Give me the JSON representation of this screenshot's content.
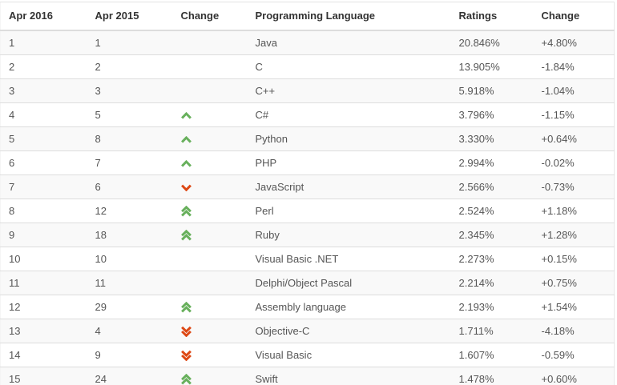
{
  "chart_data": {
    "type": "table",
    "columns": [
      "Apr 2016",
      "Apr 2015",
      "Change",
      "Programming Language",
      "Ratings",
      "Change"
    ],
    "rows": [
      {
        "apr2016": "1",
        "apr2015": "1",
        "change_direction": "none",
        "language": "Java",
        "ratings": "20.846%",
        "change": "+4.80%"
      },
      {
        "apr2016": "2",
        "apr2015": "2",
        "change_direction": "none",
        "language": "C",
        "ratings": "13.905%",
        "change": "-1.84%"
      },
      {
        "apr2016": "3",
        "apr2015": "3",
        "change_direction": "none",
        "language": "C++",
        "ratings": "5.918%",
        "change": "-1.04%"
      },
      {
        "apr2016": "4",
        "apr2015": "5",
        "change_direction": "up",
        "language": "C#",
        "ratings": "3.796%",
        "change": "-1.15%"
      },
      {
        "apr2016": "5",
        "apr2015": "8",
        "change_direction": "up",
        "language": "Python",
        "ratings": "3.330%",
        "change": "+0.64%"
      },
      {
        "apr2016": "6",
        "apr2015": "7",
        "change_direction": "up",
        "language": "PHP",
        "ratings": "2.994%",
        "change": "-0.02%"
      },
      {
        "apr2016": "7",
        "apr2015": "6",
        "change_direction": "down",
        "language": "JavaScript",
        "ratings": "2.566%",
        "change": "-0.73%"
      },
      {
        "apr2016": "8",
        "apr2015": "12",
        "change_direction": "double-up",
        "language": "Perl",
        "ratings": "2.524%",
        "change": "+1.18%"
      },
      {
        "apr2016": "9",
        "apr2015": "18",
        "change_direction": "double-up",
        "language": "Ruby",
        "ratings": "2.345%",
        "change": "+1.28%"
      },
      {
        "apr2016": "10",
        "apr2015": "10",
        "change_direction": "none",
        "language": "Visual Basic .NET",
        "ratings": "2.273%",
        "change": "+0.15%"
      },
      {
        "apr2016": "11",
        "apr2015": "11",
        "change_direction": "none",
        "language": "Delphi/Object Pascal",
        "ratings": "2.214%",
        "change": "+0.75%"
      },
      {
        "apr2016": "12",
        "apr2015": "29",
        "change_direction": "double-up",
        "language": "Assembly language",
        "ratings": "2.193%",
        "change": "+1.54%"
      },
      {
        "apr2016": "13",
        "apr2015": "4",
        "change_direction": "double-down",
        "language": "Objective-C",
        "ratings": "1.711%",
        "change": "-4.18%"
      },
      {
        "apr2016": "14",
        "apr2015": "9",
        "change_direction": "double-down",
        "language": "Visual Basic",
        "ratings": "1.607%",
        "change": "-0.59%"
      },
      {
        "apr2016": "15",
        "apr2015": "24",
        "change_direction": "double-up",
        "language": "Swift",
        "ratings": "1.478%",
        "change": "+0.60%"
      }
    ]
  },
  "colors": {
    "up_arrow": "#68b05c",
    "down_arrow": "#dd4814",
    "stripe": "#f9f9f9",
    "border": "#dddddd",
    "header_text": "#333333",
    "cell_text": "#555555"
  },
  "icons": {
    "up": "chevron-up-icon",
    "down": "chevron-down-icon",
    "double-up": "chevron-double-up-icon",
    "double-down": "chevron-double-down-icon"
  }
}
